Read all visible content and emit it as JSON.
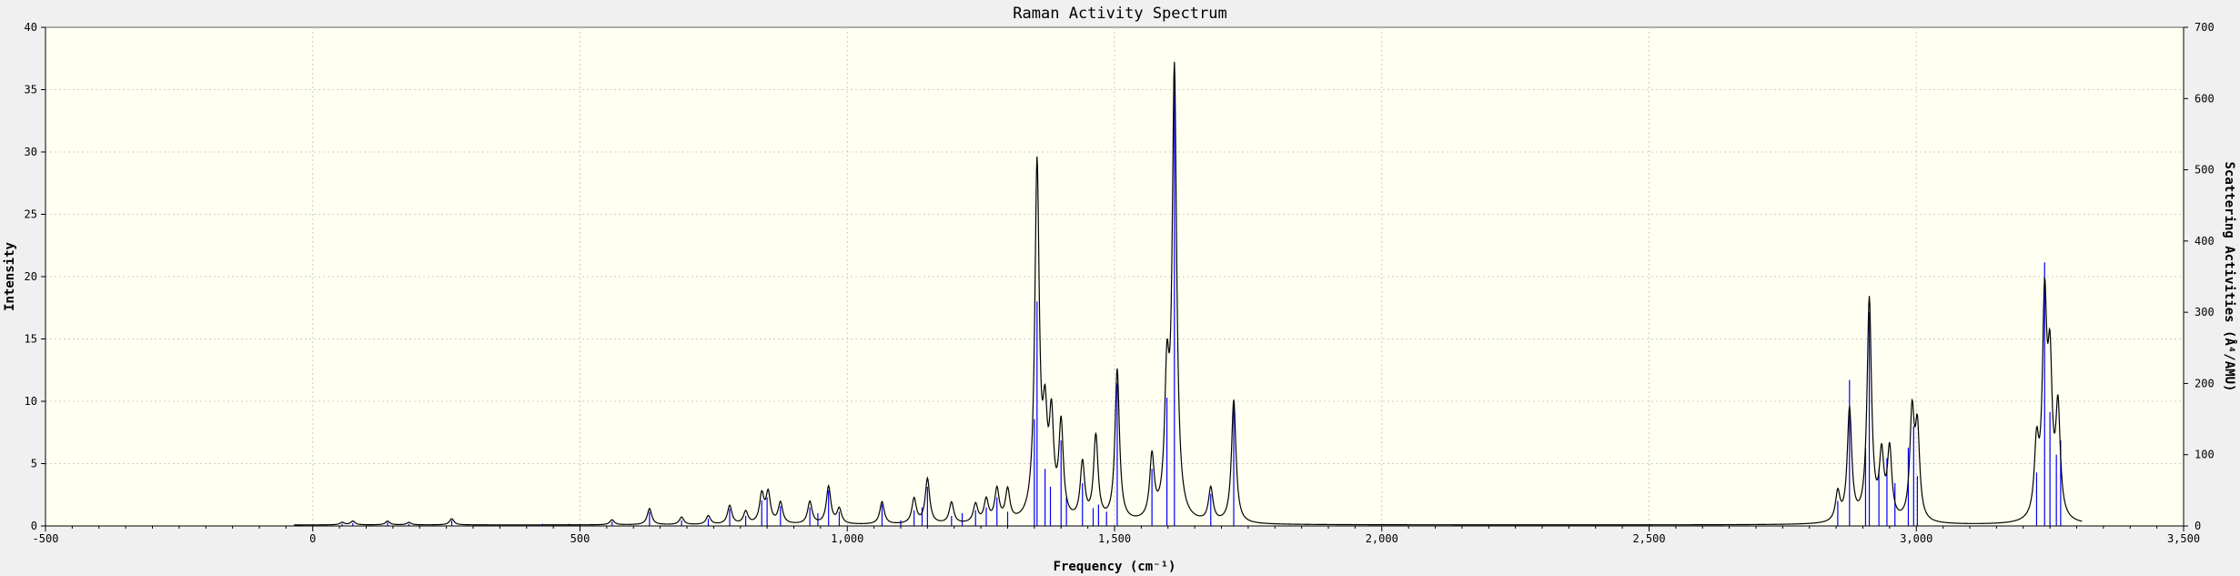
{
  "chart_data": {
    "type": "line",
    "title": "Raman Activity Spectrum",
    "xlabel": "Frequency (cm⁻¹)",
    "ylabel": "Intensity",
    "y2label": "Scattering Activities (Å⁴/AMU)",
    "xlim": [
      -500,
      3500
    ],
    "ylim": [
      0,
      40
    ],
    "y2lim": [
      0,
      700
    ],
    "xticks": [
      -500,
      0,
      500,
      1000,
      1500,
      2000,
      2500,
      3000,
      3500
    ],
    "xtick_labels": [
      "-500",
      "0",
      "500",
      "1,000",
      "1,500",
      "2,000",
      "2,500",
      "3,000",
      "3,500"
    ],
    "yticks": [
      0,
      5,
      10,
      15,
      20,
      25,
      30,
      35,
      40
    ],
    "ytick_labels": [
      "0",
      "5",
      "10",
      "15",
      "20",
      "25",
      "30",
      "35",
      "40"
    ],
    "y2ticks": [
      0,
      100,
      200,
      300,
      400,
      500,
      600,
      700
    ],
    "y2tick_labels": [
      "0",
      "100",
      "200",
      "300",
      "400",
      "500",
      "600",
      "700"
    ],
    "grid": true,
    "curve_range": [
      -35,
      3310
    ],
    "colors": {
      "background": "#fffff2",
      "curve": "#000000",
      "sticks": "#0000ff",
      "grid": "#cccccc"
    },
    "series": [
      {
        "kind": "stick",
        "axis": "right",
        "peaks": [
          {
            "x": 55,
            "y": 3
          },
          {
            "x": 75,
            "y": 4
          },
          {
            "x": 140,
            "y": 5
          },
          {
            "x": 180,
            "y": 3
          },
          {
            "x": 260,
            "y": 8
          },
          {
            "x": 430,
            "y": 3
          },
          {
            "x": 480,
            "y": 3
          },
          {
            "x": 560,
            "y": 6
          },
          {
            "x": 630,
            "y": 20
          },
          {
            "x": 690,
            "y": 8
          },
          {
            "x": 740,
            "y": 10
          },
          {
            "x": 780,
            "y": 24
          },
          {
            "x": 810,
            "y": 14
          },
          {
            "x": 840,
            "y": 36
          },
          {
            "x": 850,
            "y": 40
          },
          {
            "x": 875,
            "y": 28
          },
          {
            "x": 930,
            "y": 26
          },
          {
            "x": 945,
            "y": 18
          },
          {
            "x": 965,
            "y": 50
          },
          {
            "x": 985,
            "y": 20
          },
          {
            "x": 1065,
            "y": 30
          },
          {
            "x": 1100,
            "y": 8
          },
          {
            "x": 1125,
            "y": 22
          },
          {
            "x": 1140,
            "y": 26
          },
          {
            "x": 1150,
            "y": 55
          },
          {
            "x": 1195,
            "y": 14
          },
          {
            "x": 1215,
            "y": 18
          },
          {
            "x": 1240,
            "y": 22
          },
          {
            "x": 1260,
            "y": 26
          },
          {
            "x": 1280,
            "y": 40
          },
          {
            "x": 1300,
            "y": 20
          },
          {
            "x": 1350,
            "y": 150
          },
          {
            "x": 1355,
            "y": 315
          },
          {
            "x": 1370,
            "y": 80
          },
          {
            "x": 1380,
            "y": 55
          },
          {
            "x": 1400,
            "y": 120
          },
          {
            "x": 1410,
            "y": 40
          },
          {
            "x": 1440,
            "y": 60
          },
          {
            "x": 1460,
            "y": 25
          },
          {
            "x": 1470,
            "y": 30
          },
          {
            "x": 1485,
            "y": 20
          },
          {
            "x": 1505,
            "y": 200
          },
          {
            "x": 1570,
            "y": 80
          },
          {
            "x": 1598,
            "y": 180
          },
          {
            "x": 1612,
            "y": 630
          },
          {
            "x": 1680,
            "y": 45
          },
          {
            "x": 1723,
            "y": 175
          },
          {
            "x": 2853,
            "y": 35
          },
          {
            "x": 2875,
            "y": 205
          },
          {
            "x": 2905,
            "y": 110
          },
          {
            "x": 2912,
            "y": 300
          },
          {
            "x": 2930,
            "y": 80
          },
          {
            "x": 2945,
            "y": 95
          },
          {
            "x": 2960,
            "y": 60
          },
          {
            "x": 2985,
            "y": 110
          },
          {
            "x": 2995,
            "y": 140
          },
          {
            "x": 3002,
            "y": 70
          },
          {
            "x": 3225,
            "y": 75
          },
          {
            "x": 3240,
            "y": 370
          },
          {
            "x": 3250,
            "y": 160
          },
          {
            "x": 3262,
            "y": 100
          },
          {
            "x": 3270,
            "y": 120
          }
        ]
      },
      {
        "kind": "curve",
        "axis": "left",
        "peaks": [
          {
            "x": 55,
            "y": 0.2
          },
          {
            "x": 75,
            "y": 0.3
          },
          {
            "x": 140,
            "y": 0.3
          },
          {
            "x": 180,
            "y": 0.2
          },
          {
            "x": 260,
            "y": 0.5
          },
          {
            "x": 560,
            "y": 0.4
          },
          {
            "x": 630,
            "y": 1.3
          },
          {
            "x": 690,
            "y": 0.6
          },
          {
            "x": 740,
            "y": 0.7
          },
          {
            "x": 780,
            "y": 1.5
          },
          {
            "x": 810,
            "y": 1.0
          },
          {
            "x": 840,
            "y": 2.3
          },
          {
            "x": 852,
            "y": 2.4
          },
          {
            "x": 875,
            "y": 1.7
          },
          {
            "x": 930,
            "y": 1.8
          },
          {
            "x": 965,
            "y": 3.0
          },
          {
            "x": 985,
            "y": 1.2
          },
          {
            "x": 1065,
            "y": 1.8
          },
          {
            "x": 1125,
            "y": 2.0
          },
          {
            "x": 1150,
            "y": 3.6
          },
          {
            "x": 1195,
            "y": 1.7
          },
          {
            "x": 1240,
            "y": 1.5
          },
          {
            "x": 1260,
            "y": 1.8
          },
          {
            "x": 1280,
            "y": 2.6
          },
          {
            "x": 1300,
            "y": 2.5
          },
          {
            "x": 1355,
            "y": 28.4
          },
          {
            "x": 1370,
            "y": 7.0
          },
          {
            "x": 1382,
            "y": 7.5
          },
          {
            "x": 1400,
            "y": 7.5
          },
          {
            "x": 1440,
            "y": 4.6
          },
          {
            "x": 1465,
            "y": 6.8
          },
          {
            "x": 1505,
            "y": 12.2
          },
          {
            "x": 1570,
            "y": 5.0
          },
          {
            "x": 1598,
            "y": 10.5
          },
          {
            "x": 1612,
            "y": 35.8
          },
          {
            "x": 1680,
            "y": 2.7
          },
          {
            "x": 1723,
            "y": 9.9
          },
          {
            "x": 2853,
            "y": 2.3
          },
          {
            "x": 2875,
            "y": 9.0
          },
          {
            "x": 2912,
            "y": 17.8
          },
          {
            "x": 2935,
            "y": 5.0
          },
          {
            "x": 2950,
            "y": 5.6
          },
          {
            "x": 2992,
            "y": 8.4
          },
          {
            "x": 3002,
            "y": 7.0
          },
          {
            "x": 3225,
            "y": 5.6
          },
          {
            "x": 3240,
            "y": 16.7
          },
          {
            "x": 3250,
            "y": 11.2
          },
          {
            "x": 3265,
            "y": 8.6
          }
        ]
      }
    ]
  }
}
